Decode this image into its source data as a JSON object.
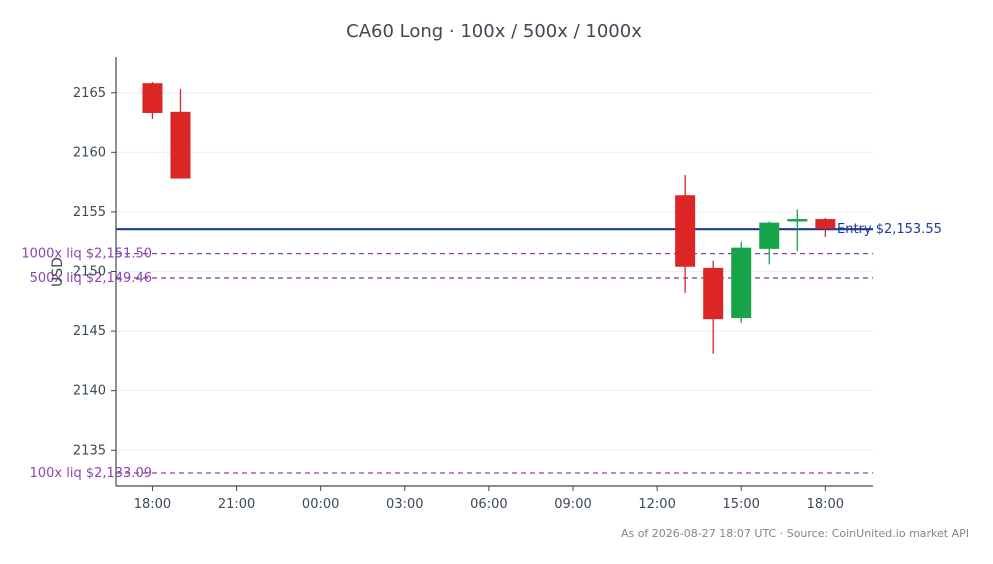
{
  "chart_data": {
    "type": "candlestick",
    "title": "CA60 Long · 100x / 500x / 1000x",
    "ylabel": "USD",
    "footer": "As of 2026-08-27 18:07 UTC · Source: CoinUnited.io market API",
    "ylim": [
      2132,
      2168
    ],
    "y_ticks": [
      "2135",
      "2140",
      "2145",
      "2150",
      "2155",
      "2160",
      "2165"
    ],
    "x_range_hours": [
      -1.3,
      25.7
    ],
    "x_ticks": [
      {
        "label": "18:00",
        "hour": 0
      },
      {
        "label": "21:00",
        "hour": 3
      },
      {
        "label": "00:00",
        "hour": 6
      },
      {
        "label": "03:00",
        "hour": 9
      },
      {
        "label": "06:00",
        "hour": 12
      },
      {
        "label": "09:00",
        "hour": 15
      },
      {
        "label": "12:00",
        "hour": 18
      },
      {
        "label": "15:00",
        "hour": 21
      },
      {
        "label": "18:00",
        "hour": 24
      }
    ],
    "candles": [
      {
        "time": "18:00",
        "hour": 0,
        "open": 2165.8,
        "high": 2165.9,
        "low": 2162.8,
        "close": 2163.3
      },
      {
        "time": "19:00",
        "hour": 1,
        "open": 2163.4,
        "high": 2165.3,
        "low": 2157.8,
        "close": 2157.8
      },
      {
        "time": "13:00",
        "hour": 19,
        "open": 2156.4,
        "high": 2158.1,
        "low": 2148.2,
        "close": 2150.4
      },
      {
        "time": "14:00",
        "hour": 20,
        "open": 2150.3,
        "high": 2150.9,
        "low": 2143.1,
        "close": 2146.0
      },
      {
        "time": "15:00",
        "hour": 21,
        "open": 2146.1,
        "high": 2152.5,
        "low": 2145.7,
        "close": 2152.0
      },
      {
        "time": "16:00",
        "hour": 22,
        "open": 2151.9,
        "high": 2154.2,
        "low": 2150.6,
        "close": 2154.1
      },
      {
        "time": "17:00",
        "hour": 23,
        "open": 2154.2,
        "high": 2155.2,
        "low": 2151.7,
        "close": 2154.4
      },
      {
        "time": "18:00",
        "hour": 24,
        "open": 2154.4,
        "high": 2154.5,
        "low": 2152.9,
        "close": 2153.6
      }
    ],
    "lines": [
      {
        "name": "entry",
        "label": "Entry $2,153.55",
        "value": 2153.55,
        "style": "solid",
        "color": "#1f3a93"
      },
      {
        "name": "liq-1000x",
        "label": "1000x liq $2,151.50",
        "value": 2151.5,
        "style": "dashed",
        "color": "#8e44ad"
      },
      {
        "name": "liq-500x",
        "label": "500x liq $2,149.46",
        "value": 2149.46,
        "style": "dashed",
        "color": "#8e44ad"
      },
      {
        "name": "liq-100x",
        "label": "100x liq $2,133.09",
        "value": 2133.09,
        "style": "dashed",
        "color": "#8e44ad"
      }
    ],
    "colors": {
      "up": "#16a34a",
      "down": "#dc2626",
      "axis": "#3d4a57",
      "grid": "#eeeeee"
    },
    "grid": true
  }
}
